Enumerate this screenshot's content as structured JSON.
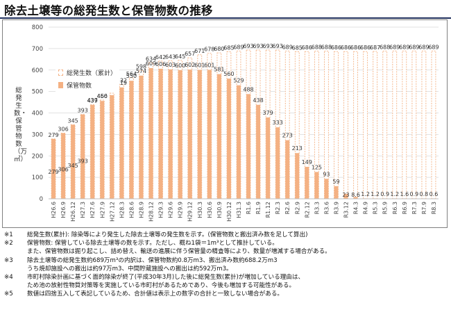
{
  "title": "除去土壌等の総発生数と保管物数の推移",
  "chart_data": {
    "type": "bar",
    "ylabel": "総発生数・保管物数（万㎥）",
    "ylim": [
      0,
      800
    ],
    "yticks": [
      0,
      100,
      200,
      300,
      400,
      500,
      600,
      700,
      800
    ],
    "grid": true,
    "legend_position": "top-left",
    "categories": [
      "H26.6",
      "H26.9",
      "H26.12",
      "H27.3",
      "H27.6",
      "H27.9",
      "H27.12",
      "H28.3",
      "H28.6",
      "H28.9",
      "H28.12",
      "H29.3",
      "H29.6",
      "H29.9",
      "H29.12",
      "H30.3",
      "H30.6",
      "H30.9",
      "H30.12",
      "H31.3",
      "R1.6",
      "R1.9",
      "R1.12",
      "R2.3",
      "R2.6",
      "R2.9",
      "R2.12",
      "R3.3",
      "R3.6",
      "R3.9",
      "R3.12",
      "R4.3",
      "R4.9",
      "R5.3",
      "R5.9",
      "R6.3",
      "R6.9",
      "R7.3",
      "R7.9",
      "R8.3"
    ],
    "series": [
      {
        "name": "総発生数（累計）",
        "color": "#f4b183",
        "style": "dashed-outline",
        "values": [
          279,
          306,
          345,
          393,
          439,
          460,
          492,
          532,
          564,
          598,
          634,
          642,
          643,
          645,
          657,
          671,
          678,
          680,
          685,
          689,
          693,
          693,
          693,
          693,
          689,
          685,
          686,
          688,
          688,
          686,
          686,
          686,
          686,
          687,
          688,
          689,
          689,
          689,
          689,
          689
        ],
        "value_labels": [
          "279",
          "306",
          "345",
          "393",
          "439",
          "460",
          "492",
          "532",
          "564",
          "598",
          "634",
          "642",
          "643",
          "645",
          "657",
          "671",
          "678",
          "680",
          "685",
          "689",
          "693",
          "693",
          "693",
          "693",
          "689",
          "685",
          "686",
          "688",
          "688",
          "686",
          "686",
          "686",
          "686",
          "687",
          "688",
          "689",
          "689",
          "689",
          "689",
          "689"
        ]
      },
      {
        "name": "保管物数",
        "color": "#f4b183",
        "style": "solid",
        "values": [
          279,
          306,
          345,
          393,
          437,
          456,
          483,
          519,
          550,
          574,
          609,
          606,
          603,
          600,
          602,
          601,
          601,
          581,
          560,
          529,
          488,
          438,
          379,
          333,
          273,
          213,
          149,
          125,
          93,
          59,
          23,
          8.6,
          1.2,
          1.2,
          0.9,
          1.2,
          1.6,
          0.9,
          0.8,
          0.6
        ],
        "value_labels": [
          "279",
          "306",
          "345",
          "393",
          "437",
          "456",
          "483",
          "519",
          "550",
          "574",
          "609",
          "606",
          "603",
          "600",
          "602",
          "601",
          "601",
          "581",
          "560",
          "529",
          "488",
          "438",
          "379",
          "333",
          "273",
          "213",
          "149",
          "125",
          "93",
          "59",
          "23",
          "8.6",
          "1.2",
          "1.2",
          "0.9",
          "1.2",
          "1.6",
          "0.9",
          "0.8",
          "0.6"
        ]
      }
    ]
  },
  "notes": [
    {
      "num": "※1",
      "lines": [
        "総発生数(累計): 除染等により発生した除去土壌等の発生数を示す。(保管物数と搬出済み数を足して算出)"
      ]
    },
    {
      "num": "※2",
      "lines": [
        "保管物数: 保管している除去土壌等の数を示す。ただし、概ね1袋＝1m³として推計している。",
        "また、保管物数は掘り起こし、詰め替え、輸送の進展に伴う保管量の精査等により、数量が増減する場合がある。"
      ]
    },
    {
      "num": "※3",
      "lines": [
        "除去土壌等の総発生数約689万m³の内訳は、保管物数約0.8万m3、搬出済み数約688.2万m3",
        "うち焼却施設への搬出は約97万m3、中間貯蔵施設への搬出は約592万m3。"
      ]
    },
    {
      "num": "※4",
      "lines": [
        "市町村除染計画に基づく面的除染が終了(平成30年3月)した後に総発生数(累計)が増加している理由は、",
        "ため池の放射性物質対策等を実施している市町村があるためであり、今後も増加する可能性がある。"
      ]
    },
    {
      "num": "※5",
      "lines": [
        "数値は四捨五入して表記しているため、合計値は表示上の数字の合計と一致しない場合がある。"
      ]
    }
  ]
}
